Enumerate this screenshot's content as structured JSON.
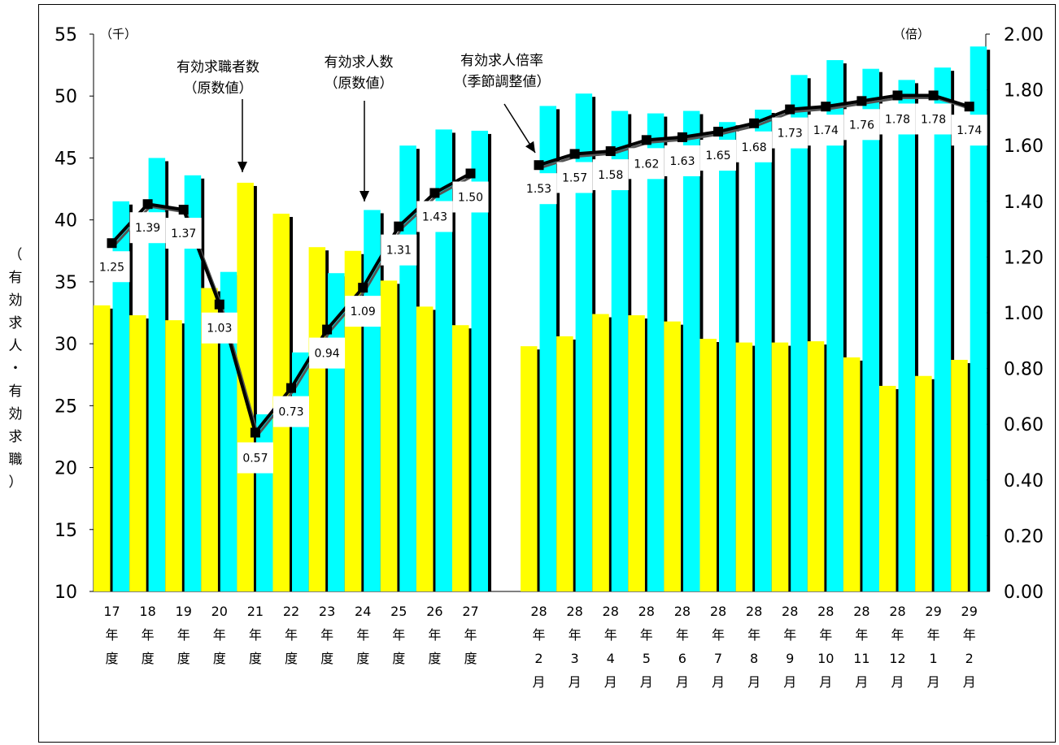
{
  "chart_data": {
    "type": "bar",
    "title": "",
    "y_left": {
      "unit": "（千）",
      "label": "（有効求人・有効求職）",
      "ylim": [
        10,
        55
      ],
      "ticks": [
        "10",
        "15",
        "20",
        "25",
        "30",
        "35",
        "40",
        "45",
        "50",
        "55"
      ]
    },
    "y_right": {
      "unit": "（倍）",
      "ylim": [
        0.0,
        2.0
      ],
      "ticks": [
        "0.00",
        "0.20",
        "0.40",
        "0.60",
        "0.80",
        "1.00",
        "1.20",
        "1.40",
        "1.60",
        "1.80",
        "2.00"
      ]
    },
    "categories": [
      [
        "17",
        "年",
        "度"
      ],
      [
        "18",
        "年",
        "度"
      ],
      [
        "19",
        "年",
        "度"
      ],
      [
        "20",
        "年",
        "度"
      ],
      [
        "21",
        "年",
        "度"
      ],
      [
        "22",
        "年",
        "度"
      ],
      [
        "23",
        "年",
        "度"
      ],
      [
        "24",
        "年",
        "度"
      ],
      [
        "25",
        "年",
        "度"
      ],
      [
        "26",
        "年",
        "度"
      ],
      [
        "27",
        "年",
        "度"
      ],
      [
        "28",
        "年",
        "2",
        "月"
      ],
      [
        "28",
        "年",
        "3",
        "月"
      ],
      [
        "28",
        "年",
        "4",
        "月"
      ],
      [
        "28",
        "年",
        "5",
        "月"
      ],
      [
        "28",
        "年",
        "6",
        "月"
      ],
      [
        "28",
        "年",
        "7",
        "月"
      ],
      [
        "28",
        "年",
        "8",
        "月"
      ],
      [
        "28",
        "年",
        "9",
        "月"
      ],
      [
        "28",
        "年",
        "10",
        "月"
      ],
      [
        "28",
        "年",
        "11",
        "月"
      ],
      [
        "28",
        "年",
        "12",
        "月"
      ],
      [
        "29",
        "年",
        "1",
        "月"
      ],
      [
        "29",
        "年",
        "2",
        "月"
      ]
    ],
    "series": [
      {
        "name": "有効求職者数（原数値）",
        "type": "bar",
        "color": "#ffff00",
        "values": [
          33.1,
          32.3,
          31.9,
          34.5,
          43.0,
          40.5,
          37.8,
          37.5,
          35.1,
          33.0,
          31.5,
          29.8,
          30.6,
          32.4,
          32.3,
          31.8,
          30.4,
          30.1,
          30.1,
          30.2,
          28.9,
          26.6,
          27.4,
          28.7
        ]
      },
      {
        "name": "有効求人数（原数値）",
        "type": "bar",
        "color": "#00ffff",
        "values": [
          41.5,
          45.0,
          43.6,
          35.8,
          24.3,
          29.3,
          35.7,
          40.8,
          46.0,
          47.3,
          47.2,
          49.2,
          50.2,
          48.8,
          48.6,
          48.8,
          47.9,
          48.9,
          51.7,
          52.9,
          52.2,
          51.3,
          52.3,
          54.0
        ]
      },
      {
        "name": "有効求人倍率（季節調整値）",
        "type": "line",
        "axis": "right",
        "color": "#000000",
        "values": [
          1.25,
          1.39,
          1.37,
          1.03,
          0.57,
          0.73,
          0.94,
          1.09,
          1.31,
          1.43,
          1.5,
          1.53,
          1.57,
          1.58,
          1.62,
          1.63,
          1.65,
          1.68,
          1.73,
          1.74,
          1.76,
          1.78,
          1.78,
          1.74
        ],
        "labels": [
          "1.25",
          "1.39",
          "1.37",
          "1.03",
          "0.57",
          "0.73",
          "0.94",
          "1.09",
          "1.31",
          "1.43",
          "1.50",
          "1.53",
          "1.57",
          "1.58",
          "1.62",
          "1.63",
          "1.65",
          "1.68",
          "1.73",
          "1.74",
          "1.76",
          "1.78",
          "1.78",
          "1.74"
        ]
      }
    ],
    "annotations": [
      {
        "lines": [
          "有効求職者数",
          "（原数値）"
        ],
        "target_series": 0,
        "target_index": 4
      },
      {
        "lines": [
          "有効求人数",
          "（原数値）"
        ],
        "target_series": 1,
        "target_index": 7
      },
      {
        "lines": [
          "有効求人倍率",
          "（季節調整値）"
        ],
        "target_series": 2,
        "target_index": 11
      }
    ]
  }
}
